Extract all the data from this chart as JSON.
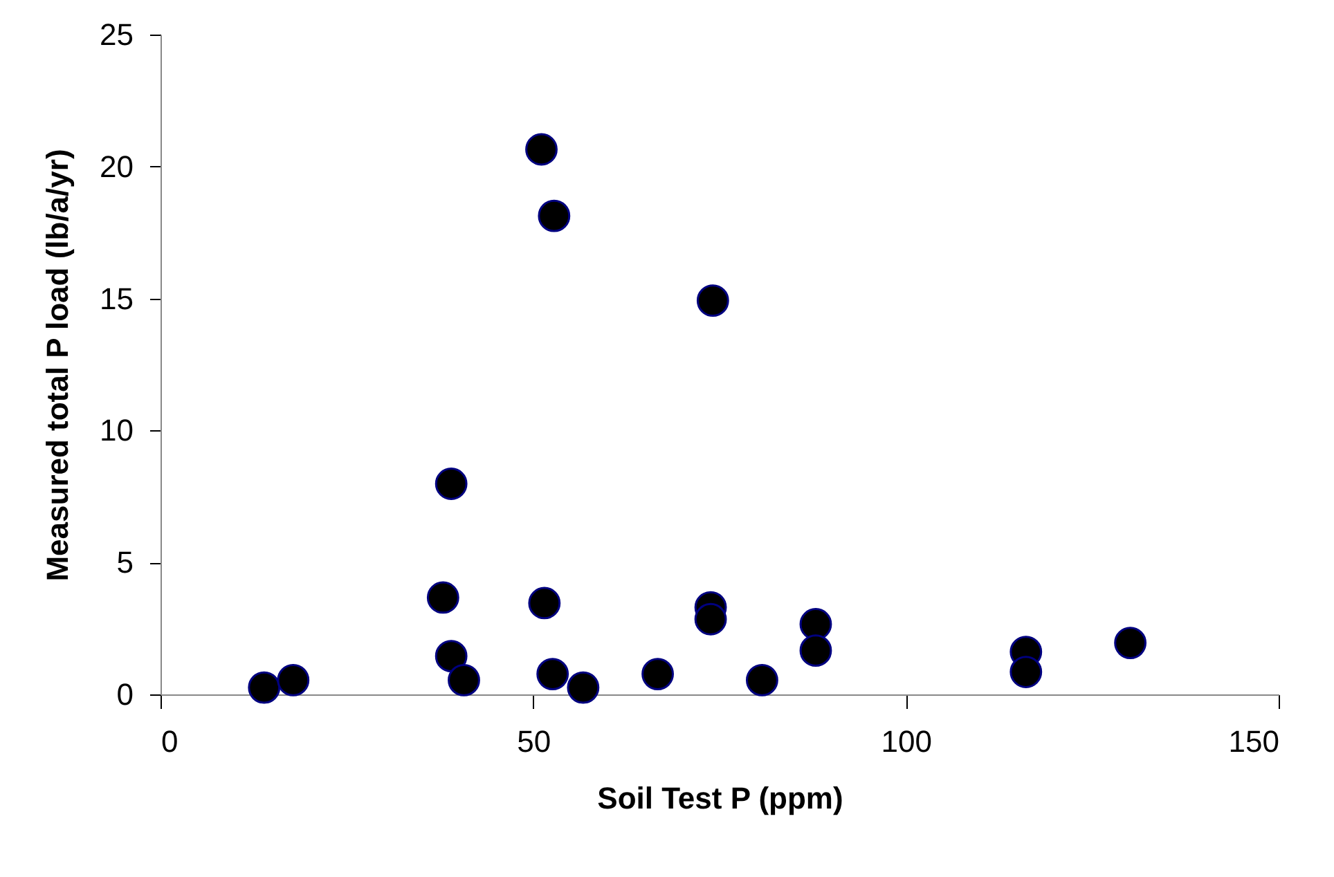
{
  "chart_data": {
    "type": "scatter",
    "xlabel": "Soil Test P (ppm)",
    "ylabel": "Measured total P load (lb/a/yr)",
    "x": [
      13.9,
      17.8,
      39.0,
      37.9,
      39.0,
      40.7,
      51.5,
      52.6,
      56.7,
      66.7,
      73.8,
      73.8,
      80.7,
      87.9,
      87.9,
      116.1,
      116.1,
      130.1,
      51.1,
      52.8,
      74.1
    ],
    "series": [
      {
        "color": "#000000",
        "values": [
          0.26,
          0.54,
          7.98,
          3.67,
          1.45,
          0.54,
          3.46,
          0.77,
          0.26,
          0.77,
          3.3,
          2.85,
          0.54,
          2.66,
          1.66,
          1.61,
          0.85,
          1.95,
          20.65,
          18.13,
          14.92
        ]
      }
    ],
    "xlim": [
      0,
      150
    ],
    "xticks": [
      0,
      50,
      100,
      150
    ],
    "ylim": [
      0,
      25
    ],
    "yticks": [
      0,
      5,
      10,
      15,
      20,
      25
    ],
    "grid": false,
    "legend": false,
    "marker": "circle"
  }
}
